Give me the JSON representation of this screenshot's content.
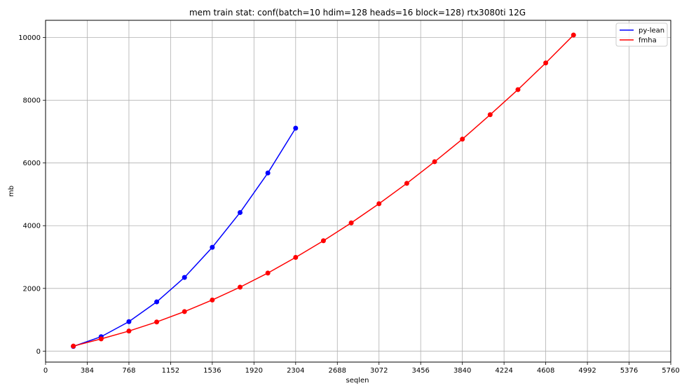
{
  "chart_data": {
    "type": "line",
    "title": "mem train stat: conf(batch=10 hdim=128 heads=16 block=128) rtx3080ti 12G",
    "xlabel": "seqlen",
    "ylabel": "mb",
    "xlim": [
      0,
      5760
    ],
    "ylim": [
      -350,
      10550
    ],
    "xticks": [
      0,
      384,
      768,
      1152,
      1536,
      1920,
      2304,
      2688,
      3072,
      3456,
      3840,
      4224,
      4608,
      4992,
      5376,
      5760
    ],
    "yticks": [
      0,
      2000,
      4000,
      6000,
      8000,
      10000
    ],
    "grid": true,
    "legend_position": "top-right",
    "series": [
      {
        "name": "py-lean",
        "color": "#0000ff",
        "x": [
          256,
          512,
          768,
          1024,
          1280,
          1536,
          1792,
          2048,
          2304
        ],
        "y": [
          150,
          460,
          940,
          1570,
          2350,
          3310,
          4420,
          5680,
          7110
        ]
      },
      {
        "name": "fmha",
        "color": "#ff0000",
        "x": [
          256,
          512,
          768,
          1024,
          1280,
          1536,
          1792,
          2048,
          2304,
          2560,
          2816,
          3072,
          3328,
          3584,
          3840,
          4096,
          4352,
          4608,
          4864
        ],
        "y": [
          160,
          390,
          640,
          930,
          1260,
          1630,
          2040,
          2490,
          2990,
          3520,
          4090,
          4700,
          5350,
          6040,
          6760,
          7540,
          8340,
          9190,
          10080
        ]
      }
    ]
  }
}
